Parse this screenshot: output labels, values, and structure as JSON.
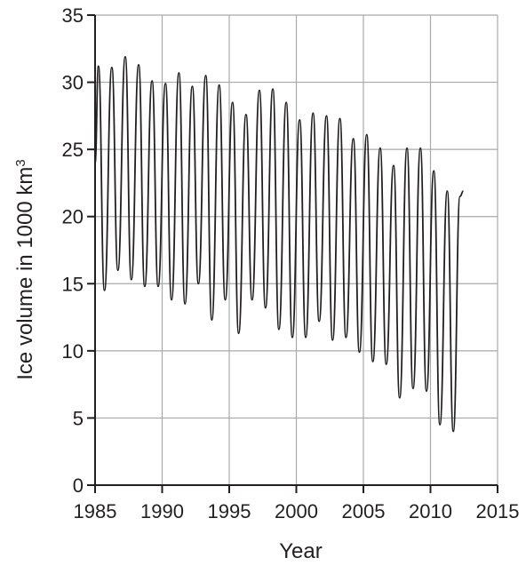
{
  "chart_data": {
    "type": "line",
    "title": "",
    "xlabel": "Year",
    "ylabel_main": "Ice volume in 1000 km",
    "ylabel_sup": "3",
    "xlim": [
      1985,
      2015
    ],
    "ylim": [
      0,
      35
    ],
    "x_ticks": [
      "1985",
      "1990",
      "1995",
      "2000",
      "2005",
      "2010",
      "2015"
    ],
    "y_ticks": [
      "0",
      "5",
      "10",
      "15",
      "20",
      "25",
      "30",
      "35"
    ],
    "grid": true,
    "series": [
      {
        "color": "#231f20",
        "x": [
          1985.0,
          1985.25,
          1985.7,
          1986.25,
          1986.7,
          1987.25,
          1987.7,
          1988.25,
          1988.7,
          1989.25,
          1989.7,
          1990.25,
          1990.7,
          1991.25,
          1991.7,
          1992.25,
          1992.7,
          1993.25,
          1993.7,
          1994.25,
          1994.7,
          1995.25,
          1995.7,
          1996.25,
          1996.7,
          1997.25,
          1997.7,
          1998.25,
          1998.7,
          1999.25,
          1999.7,
          2000.25,
          2000.7,
          2001.25,
          2001.7,
          2002.25,
          2002.7,
          2003.25,
          2003.7,
          2004.25,
          2004.7,
          2005.25,
          2005.7,
          2006.25,
          2006.7,
          2007.25,
          2007.7,
          2008.25,
          2008.7,
          2009.25,
          2009.7,
          2010.25,
          2010.7,
          2011.25,
          2011.7,
          2012.2,
          2012.45
        ],
        "y": [
          24.0,
          31.2,
          14.5,
          31.1,
          16.0,
          31.9,
          15.3,
          31.3,
          14.8,
          30.1,
          14.8,
          29.9,
          13.8,
          30.7,
          13.5,
          29.7,
          15.0,
          30.5,
          12.3,
          29.8,
          13.8,
          28.5,
          11.3,
          27.6,
          13.8,
          29.4,
          13.2,
          29.5,
          11.6,
          28.5,
          11.0,
          27.2,
          11.0,
          27.7,
          12.2,
          27.5,
          10.8,
          27.3,
          11.0,
          25.8,
          9.9,
          26.1,
          9.2,
          25.1,
          9.0,
          23.8,
          6.5,
          25.1,
          7.2,
          25.1,
          7.0,
          23.4,
          4.5,
          21.9,
          4.0,
          21.5,
          21.9
        ]
      }
    ]
  }
}
